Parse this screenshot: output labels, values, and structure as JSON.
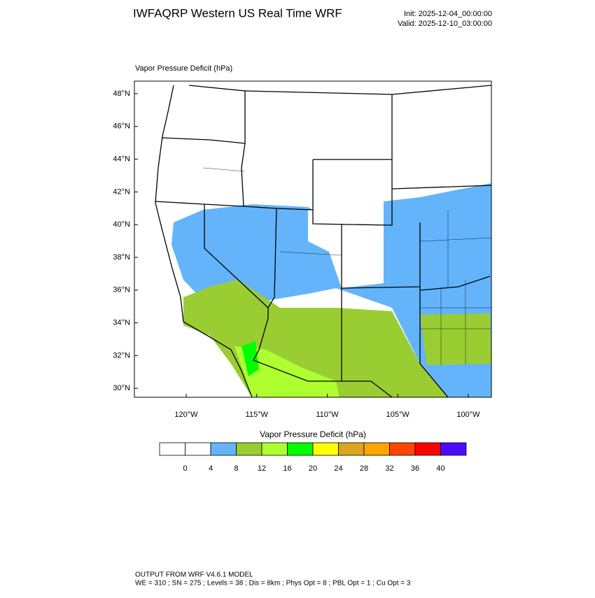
{
  "header": {
    "title": "IWFAQRP Western US Real Time WRF",
    "init": "Init: 2025-12-04_00:00:00",
    "valid": "Valid: 2025-12-10_03:00:00"
  },
  "map": {
    "field_label": "Vapor Pressure Deficit   (hPa)",
    "lat_labels": [
      "48°N",
      "46°N",
      "44°N",
      "42°N",
      "40°N",
      "38°N",
      "36°N",
      "34°N",
      "32°N",
      "30°N"
    ],
    "lon_labels": [
      "120°W",
      "115°W",
      "110°W",
      "105°W",
      "100°W"
    ]
  },
  "colorbar": {
    "title": "Vapor Pressure Deficit  (hPa)",
    "colors": [
      "#ffffff",
      "#ffffff",
      "#63b4fb",
      "#9acd32",
      "#adff2f",
      "#00ff00",
      "#ffff00",
      "#daa520",
      "#ffa500",
      "#ff4500",
      "#ff0000",
      "#4b0dff"
    ],
    "labels": [
      0,
      4,
      8,
      12,
      16,
      20,
      24,
      28,
      32,
      36,
      40
    ]
  },
  "footer": {
    "line1": "OUTPUT FROM WRF V4.6.1 MODEL",
    "line2": "WE = 310 ; SN = 275 ; Levels = 38 ; Dis = 8km ; Phys Opt = 8 ; PBL Opt = 1 ; Cu Opt = 3"
  }
}
